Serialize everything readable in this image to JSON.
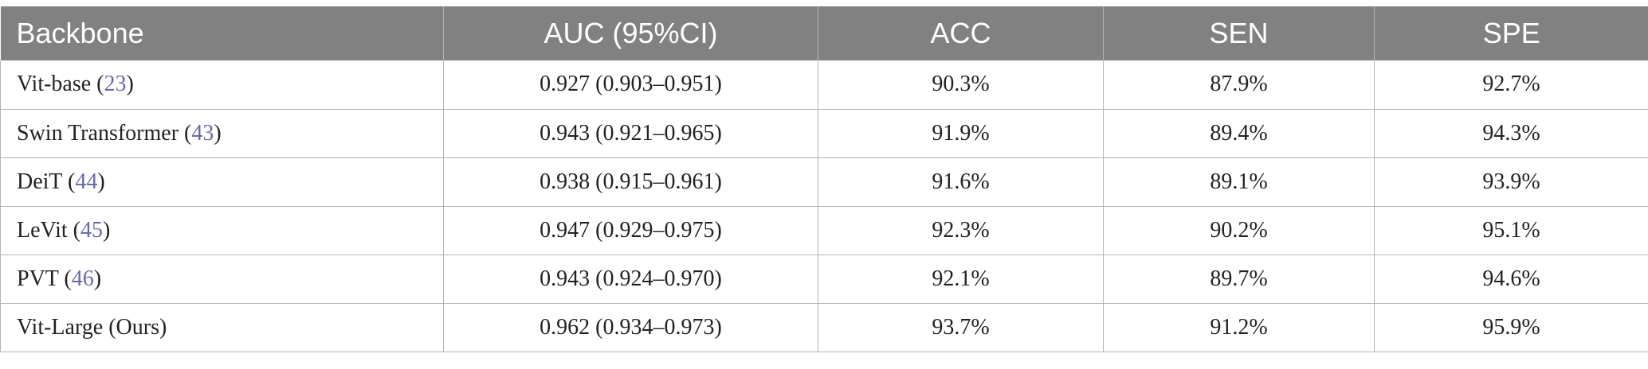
{
  "header": {
    "backbone": "Backbone",
    "auc": "AUC (95%CI)",
    "acc": "ACC",
    "sen": "SEN",
    "spe": "SPE"
  },
  "rows": [
    {
      "name": "Vit-base (",
      "ref": "23",
      "close": ")",
      "auc": "0.927 (0.903–0.951)",
      "acc": "90.3%",
      "sen": "87.9%",
      "spe": "92.7%"
    },
    {
      "name": "Swin Transformer (",
      "ref": "43",
      "close": ")",
      "auc": "0.943 (0.921–0.965)",
      "acc": "91.9%",
      "sen": "89.4%",
      "spe": "94.3%"
    },
    {
      "name": "DeiT (",
      "ref": "44",
      "close": ")",
      "auc": "0.938 (0.915–0.961)",
      "acc": "91.6%",
      "sen": "89.1%",
      "spe": "93.9%"
    },
    {
      "name": "LeVit (",
      "ref": "45",
      "close": ")",
      "auc": "0.947 (0.929–0.975)",
      "acc": "92.3%",
      "sen": "90.2%",
      "spe": "95.1%"
    },
    {
      "name": "PVT (",
      "ref": "46",
      "close": ")",
      "auc": "0.943 (0.924–0.970)",
      "acc": "92.1%",
      "sen": "89.7%",
      "spe": "94.6%"
    },
    {
      "name": "Vit-Large (Ours)",
      "ref": "",
      "close": "",
      "auc": "0.962 (0.934–0.973)",
      "acc": "93.7%",
      "sen": "91.2%",
      "spe": "95.9%"
    }
  ]
}
